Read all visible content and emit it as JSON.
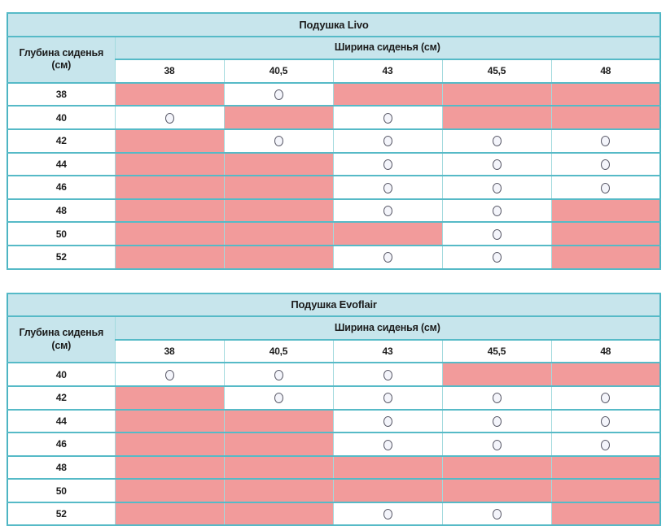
{
  "colors": {
    "border_outer": "#4db5c3",
    "border_row": "#56bac7",
    "border_inner": "#a3dade",
    "header_bg": "#c7e5ec",
    "unavailable_bg": "#f29b9b",
    "text": "#1c1c1c",
    "circle_stroke": "#5a5a68",
    "circle_fill": "#f4f5fb"
  },
  "tables": [
    {
      "title": "Подушка Livo",
      "row_header": "Глубина сиденья (см)",
      "col_header": "Ширина сиденья (см)",
      "widths": [
        "38",
        "40,5",
        "43",
        "45,5",
        "48"
      ],
      "depths": [
        "38",
        "40",
        "42",
        "44",
        "46",
        "48",
        "50",
        "52"
      ],
      "cells": [
        [
          "na",
          "ok",
          "na",
          "na",
          "na"
        ],
        [
          "ok",
          "na",
          "ok",
          "na",
          "na"
        ],
        [
          "na",
          "ok",
          "ok",
          "ok",
          "ok"
        ],
        [
          "na",
          "na",
          "ok",
          "ok",
          "ok"
        ],
        [
          "na",
          "na",
          "ok",
          "ok",
          "ok"
        ],
        [
          "na",
          "na",
          "ok",
          "ok",
          "na"
        ],
        [
          "na",
          "na",
          "na",
          "ok",
          "na"
        ],
        [
          "na",
          "na",
          "ok",
          "ok",
          "na"
        ]
      ]
    },
    {
      "title": "Подушка Evoflair",
      "row_header": "Глубина сиденья (см)",
      "col_header": "Ширина сиденья (см)",
      "widths": [
        "38",
        "40,5",
        "43",
        "45,5",
        "48"
      ],
      "depths": [
        "40",
        "42",
        "44",
        "46",
        "48",
        "50",
        "52"
      ],
      "cells": [
        [
          "ok",
          "ok",
          "ok",
          "na",
          "na"
        ],
        [
          "na",
          "ok",
          "ok",
          "ok",
          "ok"
        ],
        [
          "na",
          "na",
          "ok",
          "ok",
          "ok"
        ],
        [
          "na",
          "na",
          "ok",
          "ok",
          "ok"
        ],
        [
          "na",
          "na",
          "na",
          "na",
          "na"
        ],
        [
          "na",
          "na",
          "na",
          "na",
          "na"
        ],
        [
          "na",
          "na",
          "ok",
          "ok",
          "na"
        ]
      ]
    }
  ]
}
